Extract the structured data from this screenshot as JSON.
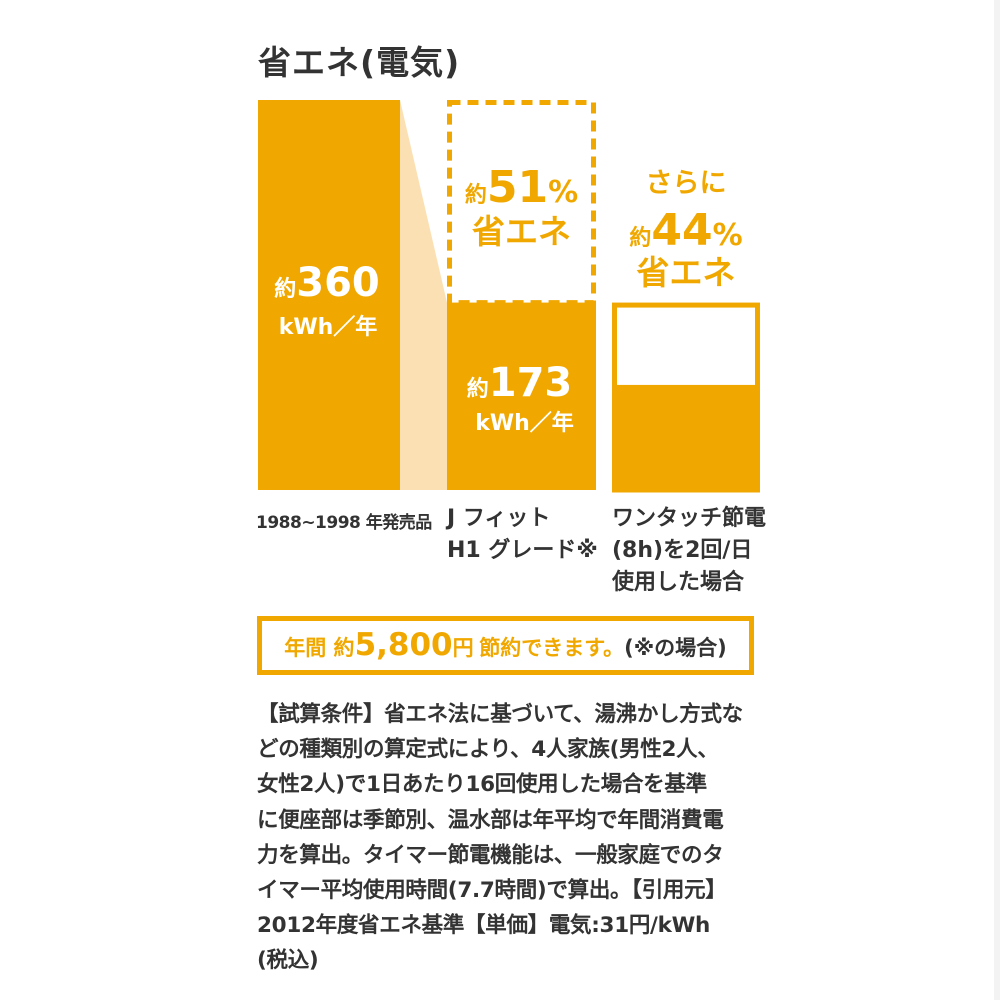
{
  "title": "省エネ(電気)",
  "colors": {
    "bar": "#f0a800",
    "connector": "#fbe0b3",
    "bar_text": "#ffffff",
    "accent_text": "#f0a800",
    "body_text": "#333333"
  },
  "chart_data": {
    "type": "bar",
    "title": "省エネ(電気)",
    "unit": "kWh／年",
    "categories": [
      "1988~1998 年発売品",
      "J フィット H1 グレード※",
      "ワンタッチ節電 (8h)を2回/日 使用した場合"
    ],
    "values": [
      360,
      173,
      97
    ],
    "ylim": [
      0,
      360
    ],
    "bar_labels": [
      {
        "prefix": "約",
        "value": "360",
        "unit": "kWh／年"
      },
      {
        "prefix": "約",
        "value": "173",
        "unit": "kWh／年"
      }
    ],
    "annotations": [
      {
        "line1_prefix": "約",
        "line1_value": "51",
        "line1_suffix": "%",
        "line2": "省エネ"
      },
      {
        "line0": "さらに",
        "line1_prefix": "約",
        "line1_value": "44",
        "line1_suffix": "%",
        "line2": "省エネ"
      }
    ]
  },
  "category_labels": {
    "c1": "1988~1998 年発売品",
    "c2_line1": "J フィット",
    "c2_line2": "H1 グレード※",
    "c3_line1": "ワンタッチ節電",
    "c3_line2": "(8h)を2回/日",
    "c3_line3": "使用した場合"
  },
  "savings": {
    "prefix": "年間 約",
    "amount": "5,800",
    "yen": "円",
    "suffix": "節約できます。",
    "note": "(※の場合)"
  },
  "conditions": {
    "lines": [
      "【試算条件】省エネ法に基づいて、湯沸かし方式な",
      "どの種類別の算定式により、4人家族(男性2人、",
      "女性2人)で1日あたり16回使用した場合を基準",
      "に便座部は季節別、温水部は年平均で年間消費電",
      "力を算出。タイマー節電機能は、一般家庭でのタ",
      "イマー平均使用時間(7.7時間)で算出。【引用元】",
      "2012年度省エネ基準【単価】電気:31円/kWh",
      "(税込)"
    ]
  }
}
